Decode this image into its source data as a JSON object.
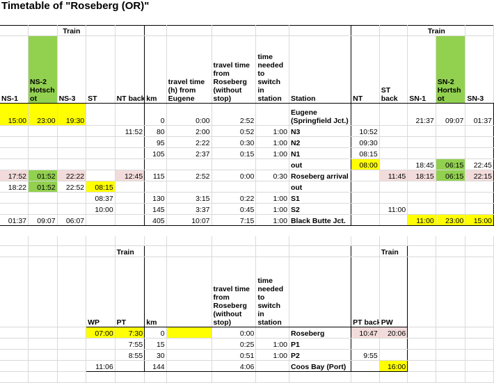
{
  "title": "Timetable of \"Roseberg (OR)\"",
  "t1": {
    "train_left": "Train",
    "train_right": "Train",
    "hdr": {
      "ns1": "NS-1",
      "ns2": "NS-2 Hotsch ot",
      "ns3": "NS-3",
      "st": "ST",
      "ntback": "NT back",
      "km": "km",
      "tt_h": "travel time (h) from Eugene",
      "tt_ros": "travel time from Roseberg (without stop)",
      "switch": "time needed to switch in station",
      "station": "Station",
      "nt": "NT",
      "stback": "ST back",
      "sn1": "SN-1",
      "sn2": "SN-2 Hortsh ot",
      "sn3": "SN-3"
    },
    "rows": [
      [
        "15:00",
        "23:00",
        "19:30",
        "",
        "",
        "0",
        "0:00",
        "2:52",
        "",
        "Eugene (Springfield Jct.)",
        "",
        "",
        "21:37",
        "09:07",
        "01:37"
      ],
      [
        "",
        "",
        "",
        "",
        "11:52",
        "80",
        "2:00",
        "0:52",
        "1:00",
        "N3",
        "10:52",
        "",
        "",
        "",
        ""
      ],
      [
        "",
        "",
        "",
        "",
        "",
        "95",
        "2:22",
        "0:30",
        "1:00",
        "N2",
        "09:30",
        "",
        "",
        "",
        ""
      ],
      [
        "",
        "",
        "",
        "",
        "",
        "105",
        "2:37",
        "0:15",
        "1:00",
        "N1",
        "08:15",
        "",
        "",
        "",
        ""
      ],
      [
        "",
        "",
        "",
        "",
        "",
        "",
        "",
        "",
        "",
        "out",
        "08:00",
        "",
        "18:45",
        "06:15",
        "22:45"
      ],
      [
        "17:52",
        "01:52",
        "22:22",
        "",
        "12:45",
        "115",
        "2:52",
        "0:00",
        "0:30",
        "Roseberg arrival",
        "",
        "11:45",
        "18:15",
        "06:15",
        "22:15"
      ],
      [
        "18:22",
        "01:52",
        "22:52",
        "08:15",
        "",
        "",
        "",
        "",
        "",
        "out",
        "",
        "",
        "",
        "",
        ""
      ],
      [
        "",
        "",
        "",
        "08:37",
        "",
        "130",
        "3:15",
        "0:22",
        "1:00",
        "S1",
        "",
        "",
        "",
        "",
        ""
      ],
      [
        "",
        "",
        "",
        "10:00",
        "",
        "145",
        "3:37",
        "0:45",
        "1:00",
        "S2",
        "",
        "11:00",
        "",
        "",
        ""
      ],
      [
        "01:37",
        "09:07",
        "06:07",
        "",
        "",
        "405",
        "10:07",
        "7:15",
        "1:00",
        "Black Butte Jct.",
        "",
        "",
        "11:00",
        "23:00",
        "15:00"
      ]
    ]
  },
  "t2": {
    "train_left": "Train",
    "train_right": "Train",
    "hdr": {
      "wp": "WP",
      "pt": "PT",
      "km": "km",
      "tt_ros": "travel time from Roseberg (without stop)",
      "switch": "time needed to switch in station",
      "ptback": "PT back",
      "pw": "PW"
    },
    "rows": [
      [
        "07:00",
        "7:30",
        "0",
        "0:00",
        "",
        "Roseberg",
        "10:47",
        "20:06"
      ],
      [
        "",
        "7:55",
        "15",
        "0:25",
        "1:00",
        "P1",
        "",
        ""
      ],
      [
        "",
        "8:55",
        "30",
        "0:51",
        "1:00",
        "P2",
        "9:55",
        ""
      ],
      [
        "11:06",
        "",
        "144",
        "4:06",
        "",
        "Coos Bay (Port)",
        "",
        "16:00"
      ]
    ]
  },
  "colors": {
    "highlight_yellow": "#ffff00",
    "highlight_green": "#92d050",
    "highlight_pink": "#f2dcdb"
  }
}
